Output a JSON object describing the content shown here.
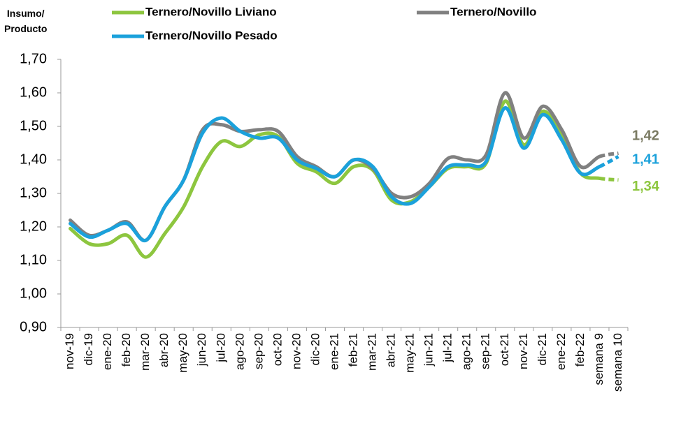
{
  "chart_data": {
    "type": "line",
    "y_axis_label": "Insumo/\nProducto",
    "categories": [
      "nov-19",
      "dic-19",
      "ene-20",
      "feb-20",
      "mar-20",
      "abr-20",
      "may-20",
      "jun-20",
      "jul-20",
      "ago-20",
      "sep-20",
      "oct-20",
      "nov-20",
      "dic-20",
      "ene-21",
      "feb-21",
      "mar-21",
      "abr-21",
      "may-21",
      "jun-21",
      "jul-21",
      "ago-21",
      "sep-21",
      "oct-21",
      "nov-21",
      "dic-21",
      "ene-22",
      "feb-22",
      "semana 9",
      "semana 10"
    ],
    "series": [
      {
        "name": "Ternero/Novillo Liviano",
        "color": "#8dc63f",
        "label_color": "#8dc63f",
        "values": [
          1.195,
          1.15,
          1.15,
          1.175,
          1.11,
          1.18,
          1.26,
          1.38,
          1.455,
          1.44,
          1.475,
          1.47,
          1.39,
          1.365,
          1.33,
          1.38,
          1.37,
          1.28,
          1.275,
          1.32,
          1.375,
          1.38,
          1.39,
          1.575,
          1.445,
          1.545,
          1.47,
          1.36,
          1.345,
          1.34
        ],
        "value_labels": [
          null,
          null,
          null,
          null,
          null,
          null,
          null,
          null,
          null,
          null,
          null,
          null,
          null,
          null,
          null,
          null,
          null,
          null,
          null,
          null,
          null,
          null,
          null,
          null,
          null,
          null,
          null,
          null,
          null,
          "1,34"
        ]
      },
      {
        "name": "Ternero/Novillo",
        "color": "#808080",
        "label_color": "#7a7a62",
        "values": [
          1.22,
          1.175,
          1.19,
          1.215,
          1.16,
          1.26,
          1.34,
          1.49,
          1.505,
          1.485,
          1.49,
          1.485,
          1.41,
          1.38,
          1.35,
          1.4,
          1.375,
          1.3,
          1.29,
          1.33,
          1.405,
          1.4,
          1.415,
          1.6,
          1.465,
          1.56,
          1.49,
          1.38,
          1.41,
          1.42
        ],
        "value_labels": [
          null,
          null,
          null,
          null,
          null,
          null,
          null,
          null,
          null,
          null,
          null,
          null,
          null,
          null,
          null,
          null,
          null,
          null,
          null,
          null,
          null,
          null,
          null,
          null,
          null,
          null,
          null,
          null,
          null,
          "1,42"
        ]
      },
      {
        "name": "Ternero/Novillo Pesado",
        "color": "#1ba1db",
        "label_color": "#1ba1db",
        "values": [
          1.21,
          1.17,
          1.19,
          1.21,
          1.16,
          1.26,
          1.34,
          1.48,
          1.525,
          1.485,
          1.465,
          1.465,
          1.4,
          1.375,
          1.35,
          1.4,
          1.38,
          1.29,
          1.27,
          1.32,
          1.38,
          1.385,
          1.395,
          1.555,
          1.435,
          1.535,
          1.46,
          1.36,
          1.38,
          1.41
        ],
        "value_labels": [
          null,
          null,
          null,
          null,
          null,
          null,
          null,
          null,
          null,
          null,
          null,
          null,
          null,
          null,
          null,
          null,
          null,
          null,
          null,
          null,
          null,
          null,
          null,
          null,
          null,
          null,
          null,
          null,
          null,
          "1,41"
        ]
      }
    ],
    "dashed_last_segment": true,
    "ylim": [
      0.9,
      1.7
    ],
    "yticks": [
      {
        "value": 0.9,
        "label": "0,90"
      },
      {
        "value": 1.0,
        "label": "1,00"
      },
      {
        "value": 1.1,
        "label": "1,10"
      },
      {
        "value": 1.2,
        "label": "1,20"
      },
      {
        "value": 1.3,
        "label": "1,30"
      },
      {
        "value": 1.4,
        "label": "1,40"
      },
      {
        "value": 1.5,
        "label": "1,50"
      },
      {
        "value": 1.6,
        "label": "1,60"
      },
      {
        "value": 1.7,
        "label": "1,70"
      }
    ],
    "grid": false,
    "legend": "top"
  }
}
